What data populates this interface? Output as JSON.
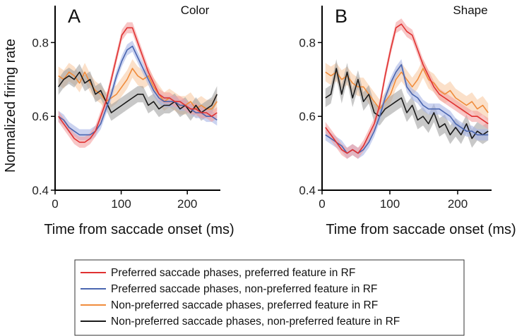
{
  "ylabel": "Normalized firing rate",
  "colors": {
    "red": "#e03131",
    "blue": "#4a66b0",
    "orange": "#f08c3c",
    "black": "#1a1a1a",
    "red_band": "#f4a0a0",
    "blue_band": "#a8b6e6",
    "orange_band": "#f8cba5",
    "black_band": "#9a9a9a"
  },
  "legend": {
    "items": [
      {
        "key": "red",
        "label": "Preferred saccade phases, preferred feature in RF"
      },
      {
        "key": "blue",
        "label": "Preferred saccade phases, non-preferred feature in RF"
      },
      {
        "key": "orange",
        "label": "Non-preferred saccade phases, preferred feature in RF"
      },
      {
        "key": "black",
        "label": "Non-preferred saccade phases, non-preferred feature in RF"
      }
    ]
  },
  "chart_data": [
    {
      "type": "line",
      "panel_letter": "A",
      "title": "Color",
      "xlabel": "Time from saccade onset (ms)",
      "ylabel": "Normalized firing rate",
      "xlim": [
        0,
        250
      ],
      "ylim": [
        0.4,
        0.9
      ],
      "xticks": [
        "0",
        "100",
        "200"
      ],
      "xtick_values": [
        0,
        100,
        200
      ],
      "yticks": [
        "0.4",
        "0.6",
        "0.8"
      ],
      "ytick_values": [
        0.4,
        0.6,
        0.8
      ],
      "x": [
        5,
        13,
        21,
        29,
        37,
        45,
        53,
        61,
        69,
        77,
        85,
        93,
        101,
        109,
        117,
        125,
        133,
        141,
        149,
        157,
        165,
        173,
        181,
        189,
        197,
        205,
        213,
        221,
        229,
        237,
        245
      ],
      "series": [
        {
          "name": "Preferred saccade phases, preferred feature in RF",
          "key": "red",
          "error": 0.015,
          "values": [
            0.6,
            0.58,
            0.56,
            0.54,
            0.53,
            0.53,
            0.54,
            0.56,
            0.6,
            0.64,
            0.7,
            0.76,
            0.82,
            0.84,
            0.84,
            0.8,
            0.76,
            0.72,
            0.69,
            0.66,
            0.65,
            0.65,
            0.64,
            0.64,
            0.63,
            0.62,
            0.62,
            0.61,
            0.61,
            0.6,
            0.61
          ]
        },
        {
          "name": "Preferred saccade phases, non-preferred feature in RF",
          "key": "blue",
          "error": 0.015,
          "values": [
            0.6,
            0.59,
            0.57,
            0.56,
            0.55,
            0.55,
            0.55,
            0.56,
            0.58,
            0.62,
            0.66,
            0.71,
            0.75,
            0.78,
            0.79,
            0.76,
            0.73,
            0.7,
            0.67,
            0.65,
            0.64,
            0.64,
            0.64,
            0.63,
            0.63,
            0.62,
            0.61,
            0.61,
            0.6,
            0.6,
            0.59
          ]
        },
        {
          "name": "Non-preferred saccade phases, preferred feature in RF",
          "key": "orange",
          "error": 0.025,
          "values": [
            0.71,
            0.7,
            0.72,
            0.71,
            0.69,
            0.72,
            0.69,
            0.67,
            0.66,
            0.64,
            0.65,
            0.66,
            0.68,
            0.7,
            0.73,
            0.71,
            0.7,
            0.71,
            0.68,
            0.66,
            0.64,
            0.65,
            0.64,
            0.63,
            0.63,
            0.64,
            0.62,
            0.63,
            0.62,
            0.62,
            0.64
          ]
        },
        {
          "name": "Non-preferred saccade phases, non-preferred feature in RF",
          "key": "black",
          "error": 0.022,
          "values": [
            0.68,
            0.7,
            0.71,
            0.7,
            0.72,
            0.69,
            0.7,
            0.66,
            0.67,
            0.64,
            0.61,
            0.62,
            0.63,
            0.64,
            0.65,
            0.66,
            0.66,
            0.63,
            0.64,
            0.62,
            0.63,
            0.63,
            0.64,
            0.62,
            0.63,
            0.61,
            0.63,
            0.61,
            0.62,
            0.63,
            0.66
          ]
        }
      ]
    },
    {
      "type": "line",
      "panel_letter": "B",
      "title": "Shape",
      "xlabel": "Time from saccade onset (ms)",
      "ylabel": "Normalized firing rate",
      "xlim": [
        0,
        250
      ],
      "ylim": [
        0.4,
        0.9
      ],
      "xticks": [
        "0",
        "100",
        "200"
      ],
      "xtick_values": [
        0,
        100,
        200
      ],
      "yticks": [
        "0.4",
        "0.6",
        "0.8"
      ],
      "ytick_values": [
        0.4,
        0.6,
        0.8
      ],
      "x": [
        5,
        13,
        21,
        29,
        37,
        45,
        53,
        61,
        69,
        77,
        85,
        93,
        101,
        109,
        117,
        125,
        133,
        141,
        149,
        157,
        165,
        173,
        181,
        189,
        197,
        205,
        213,
        221,
        229,
        237,
        245
      ],
      "series": [
        {
          "name": "Preferred saccade phases, preferred feature in RF",
          "key": "red",
          "error": 0.015,
          "values": [
            0.57,
            0.55,
            0.53,
            0.51,
            0.5,
            0.51,
            0.5,
            0.52,
            0.55,
            0.58,
            0.63,
            0.71,
            0.78,
            0.84,
            0.85,
            0.83,
            0.82,
            0.78,
            0.74,
            0.71,
            0.68,
            0.66,
            0.65,
            0.64,
            0.63,
            0.62,
            0.61,
            0.6,
            0.6,
            0.59,
            0.58
          ]
        },
        {
          "name": "Preferred saccade phases, non-preferred feature in RF",
          "key": "blue",
          "error": 0.015,
          "values": [
            0.55,
            0.54,
            0.53,
            0.52,
            0.5,
            0.51,
            0.5,
            0.51,
            0.53,
            0.56,
            0.6,
            0.65,
            0.69,
            0.72,
            0.74,
            0.68,
            0.66,
            0.65,
            0.63,
            0.62,
            0.62,
            0.62,
            0.61,
            0.6,
            0.58,
            0.57,
            0.56,
            0.56,
            0.55,
            0.55,
            0.55
          ]
        },
        {
          "name": "Non-preferred saccade phases, preferred feature in RF",
          "key": "orange",
          "error": 0.025,
          "values": [
            0.72,
            0.71,
            0.72,
            0.7,
            0.71,
            0.69,
            0.68,
            0.68,
            0.66,
            0.64,
            0.62,
            0.64,
            0.66,
            0.7,
            0.72,
            0.7,
            0.68,
            0.7,
            0.73,
            0.7,
            0.69,
            0.67,
            0.66,
            0.67,
            0.65,
            0.64,
            0.63,
            0.64,
            0.62,
            0.63,
            0.61
          ]
        },
        {
          "name": "Non-preferred saccade phases, non-preferred feature in RF",
          "key": "black",
          "error": 0.025,
          "values": [
            0.65,
            0.66,
            0.73,
            0.66,
            0.72,
            0.65,
            0.7,
            0.64,
            0.66,
            0.61,
            0.6,
            0.62,
            0.63,
            0.64,
            0.65,
            0.61,
            0.63,
            0.59,
            0.6,
            0.58,
            0.61,
            0.57,
            0.58,
            0.55,
            0.57,
            0.55,
            0.58,
            0.54,
            0.56,
            0.55,
            0.56
          ]
        }
      ]
    }
  ]
}
